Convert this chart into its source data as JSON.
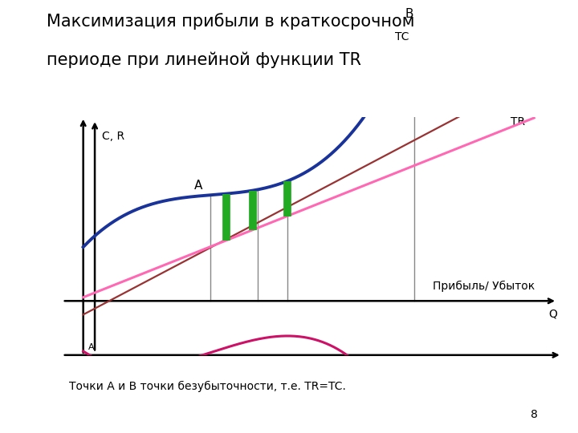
{
  "title_line1": "Максимизация прибыли в краткосрочном",
  "title_line2": "периоде при линейной функции TR",
  "title_fontsize": 15,
  "ylabel": "C, R",
  "xlabel": "Q",
  "background_color": "#ffffff",
  "label_A": "A",
  "label_B": "B",
  "label_TC": "TC",
  "label_TR": "TR",
  "label_profit": "Прибыль/ Убыток",
  "footnote": "Точки А и В точки безубыточности, т.е. TR=TC.",
  "page_number": "8",
  "tc_color": "#1a3399",
  "tr_color": "#ff69b4",
  "tr2_color": "#993333",
  "profit_color": "#cc1166",
  "green_bar_color": "#22aa22",
  "vertical_line_color": "#888888",
  "axis_color": "#000000",
  "xlim": [
    -0.5,
    10.5
  ],
  "ylim": [
    -2.2,
    7.0
  ],
  "tc_coeffs": [
    0.07,
    -0.6,
    1.85,
    1.9
  ],
  "tr_slope": 0.68,
  "tr_intercept": 0.1,
  "tr2_slope": 0.9,
  "tr2_intercept": -0.55
}
